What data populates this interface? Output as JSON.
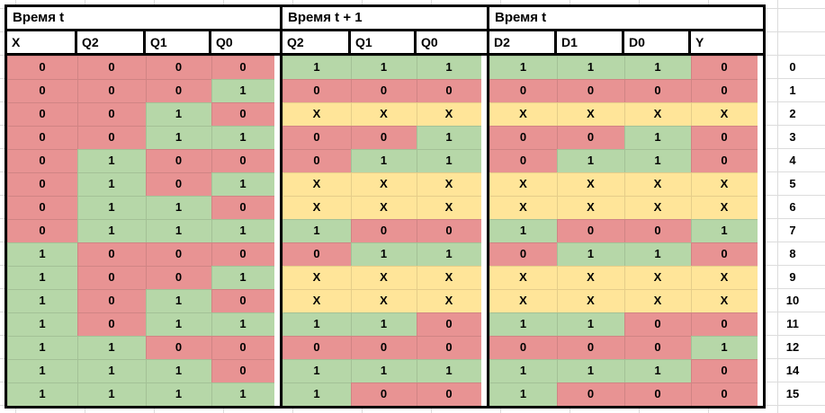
{
  "table": {
    "groups": [
      {
        "label": "Время t",
        "columns": [
          "X",
          "Q2",
          "Q1",
          "Q0"
        ]
      },
      {
        "label": "Время t + 1",
        "columns": [
          "Q2",
          "Q1",
          "Q0"
        ]
      },
      {
        "label": "Время t",
        "columns": [
          "D2",
          "D1",
          "D0",
          "Y"
        ]
      }
    ],
    "rows": [
      {
        "t": [
          "0",
          "0",
          "0",
          "0"
        ],
        "t1": [
          "1",
          "1",
          "1"
        ],
        "d": [
          "1",
          "1",
          "1",
          "0"
        ],
        "label": "0"
      },
      {
        "t": [
          "0",
          "0",
          "0",
          "1"
        ],
        "t1": [
          "0",
          "0",
          "0"
        ],
        "d": [
          "0",
          "0",
          "0",
          "0"
        ],
        "label": "1"
      },
      {
        "t": [
          "0",
          "0",
          "1",
          "0"
        ],
        "t1": [
          "X",
          "X",
          "X"
        ],
        "d": [
          "X",
          "X",
          "X",
          "X"
        ],
        "label": "2"
      },
      {
        "t": [
          "0",
          "0",
          "1",
          "1"
        ],
        "t1": [
          "0",
          "0",
          "1"
        ],
        "d": [
          "0",
          "0",
          "1",
          "0"
        ],
        "label": "3"
      },
      {
        "t": [
          "0",
          "1",
          "0",
          "0"
        ],
        "t1": [
          "0",
          "1",
          "1"
        ],
        "d": [
          "0",
          "1",
          "1",
          "0"
        ],
        "label": "4"
      },
      {
        "t": [
          "0",
          "1",
          "0",
          "1"
        ],
        "t1": [
          "X",
          "X",
          "X"
        ],
        "d": [
          "X",
          "X",
          "X",
          "X"
        ],
        "label": "5"
      },
      {
        "t": [
          "0",
          "1",
          "1",
          "0"
        ],
        "t1": [
          "X",
          "X",
          "X"
        ],
        "d": [
          "X",
          "X",
          "X",
          "X"
        ],
        "label": "6"
      },
      {
        "t": [
          "0",
          "1",
          "1",
          "1"
        ],
        "t1": [
          "1",
          "0",
          "0"
        ],
        "d": [
          "1",
          "0",
          "0",
          "1"
        ],
        "label": "7"
      },
      {
        "t": [
          "1",
          "0",
          "0",
          "0"
        ],
        "t1": [
          "0",
          "1",
          "1"
        ],
        "d": [
          "0",
          "1",
          "1",
          "0"
        ],
        "label": "8"
      },
      {
        "t": [
          "1",
          "0",
          "0",
          "1"
        ],
        "t1": [
          "X",
          "X",
          "X"
        ],
        "d": [
          "X",
          "X",
          "X",
          "X"
        ],
        "label": "9"
      },
      {
        "t": [
          "1",
          "0",
          "1",
          "0"
        ],
        "t1": [
          "X",
          "X",
          "X"
        ],
        "d": [
          "X",
          "X",
          "X",
          "X"
        ],
        "label": "10"
      },
      {
        "t": [
          "1",
          "0",
          "1",
          "1"
        ],
        "t1": [
          "1",
          "1",
          "0"
        ],
        "d": [
          "1",
          "1",
          "0",
          "0"
        ],
        "label": "11"
      },
      {
        "t": [
          "1",
          "1",
          "0",
          "0"
        ],
        "t1": [
          "0",
          "0",
          "0"
        ],
        "d": [
          "0",
          "0",
          "0",
          "1"
        ],
        "label": "12"
      },
      {
        "t": [
          "1",
          "1",
          "1",
          "0"
        ],
        "t1": [
          "1",
          "1",
          "1"
        ],
        "d": [
          "1",
          "1",
          "1",
          "0"
        ],
        "label": "14"
      },
      {
        "t": [
          "1",
          "1",
          "1",
          "1"
        ],
        "t1": [
          "1",
          "0",
          "0"
        ],
        "d": [
          "1",
          "0",
          "0",
          "0"
        ],
        "label": "15"
      }
    ]
  },
  "colors": {
    "0": "#e89393",
    "1": "#b6d7a8",
    "X": "#ffe599",
    "border": "#000000",
    "gridline": "#dcdcdc"
  }
}
